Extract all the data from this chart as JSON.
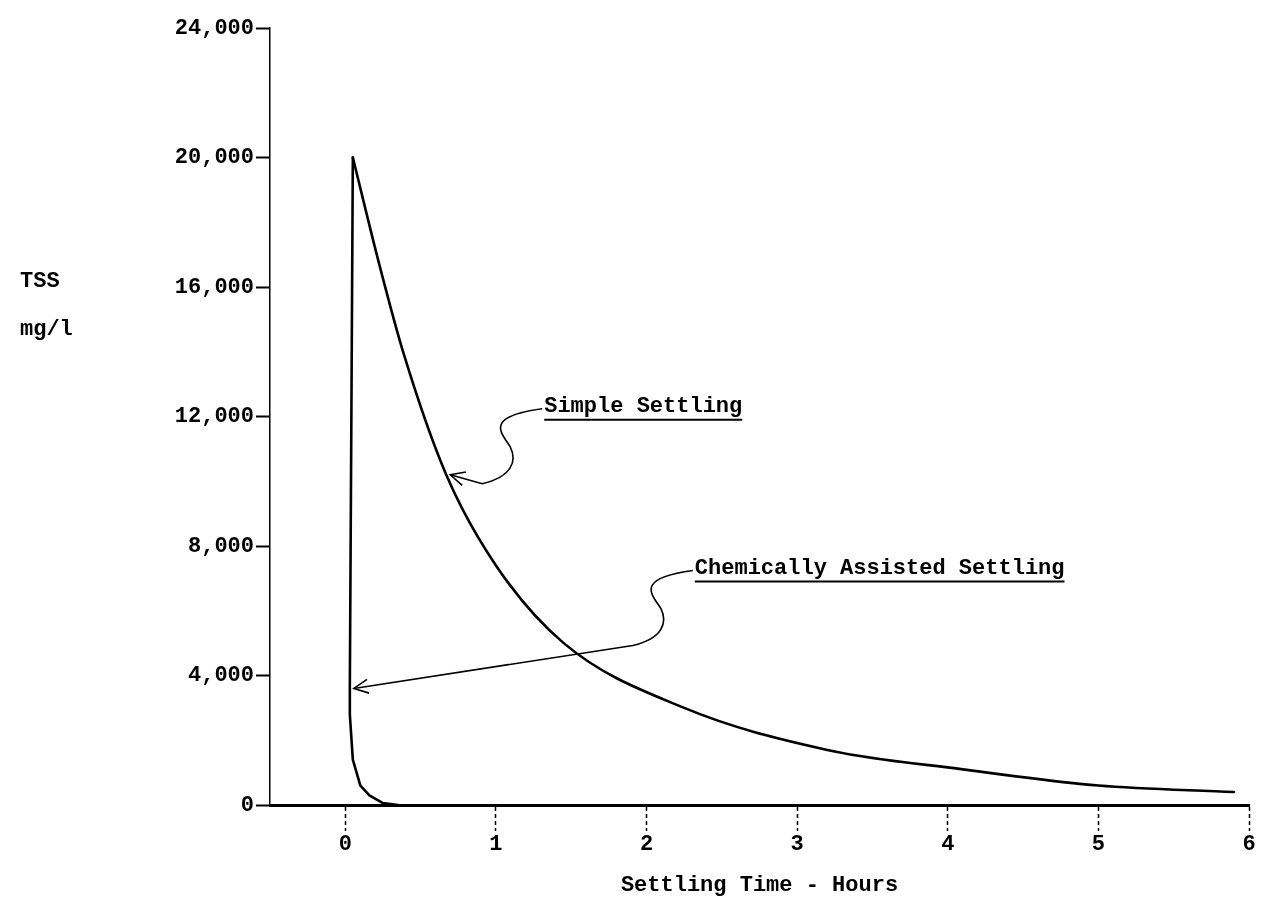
{
  "chart_data": {
    "type": "line",
    "xlabel": "Settling Time - Hours",
    "ylabel": "TSS\nmg/l",
    "xlim": [
      -0.5,
      6
    ],
    "xticks": [
      0,
      1,
      2,
      3,
      4,
      5,
      6
    ],
    "ylim": [
      0,
      24000
    ],
    "yticks": [
      {
        "value": 0,
        "label": "0"
      },
      {
        "value": 4000,
        "label": "4,000"
      },
      {
        "value": 8000,
        "label": "8,000"
      },
      {
        "value": 12000,
        "label": "12,000"
      },
      {
        "value": 16000,
        "label": "16,000"
      },
      {
        "value": 20000,
        "label": "20,000"
      },
      {
        "value": 24000,
        "label": "24,000"
      }
    ],
    "grid": false,
    "legend": false,
    "marker": "none",
    "line_style": "solid",
    "series": [
      {
        "color": "#000000",
        "x": [
          0.05,
          0.22,
          0.39,
          0.67,
          1.0,
          1.45,
          2.25,
          3.2,
          4.1,
          5.0,
          5.9
        ],
        "values": [
          20000,
          16800,
          13900,
          10200,
          7400,
          5000,
          3000,
          1700,
          1100,
          600,
          400
        ]
      },
      {
        "color": "#000000",
        "x": [
          0.05,
          0.03,
          0.03,
          0.05,
          0.1,
          0.16,
          0.25,
          0.35
        ],
        "values": [
          20000,
          3600,
          2800,
          1400,
          600,
          300,
          60,
          0
        ]
      }
    ],
    "annotations": [
      {
        "text": "Simple Settling",
        "x": 0.67,
        "y": 10200
      },
      {
        "text": "Chemically Assisted Settling",
        "x": 0.03,
        "y": 3600
      }
    ]
  }
}
